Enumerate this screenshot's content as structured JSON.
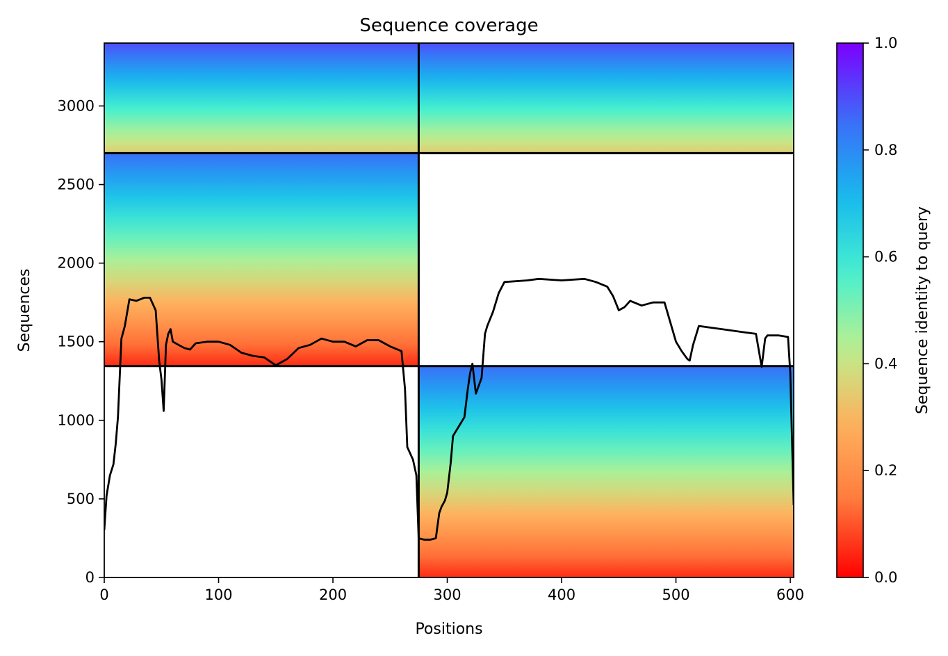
{
  "chart_data": {
    "type": "heatmap",
    "title": "Sequence coverage",
    "xlabel": "Positions",
    "ylabel": "Sequences",
    "xlim": [
      0,
      603
    ],
    "ylim": [
      0,
      3400
    ],
    "x_ticks": [
      0,
      100,
      200,
      300,
      400,
      500,
      600
    ],
    "y_ticks": [
      0,
      500,
      1000,
      1500,
      2000,
      2500,
      3000
    ],
    "grid": false,
    "colormap": "rainbow",
    "colorbar": {
      "label": "Sequence identity to query",
      "range": [
        0.0,
        1.0
      ],
      "ticks": [
        "0.0",
        "0.2",
        "0.4",
        "0.6",
        "0.8",
        "1.0"
      ],
      "stops": [
        "#ff0000",
        "#ff7a3c",
        "#ffb05c",
        "#bcf08e",
        "#46f0d0",
        "#16b8ee",
        "#3c6cf8",
        "#7b00ff"
      ]
    },
    "block_dividers": {
      "x": [
        275
      ],
      "y": [
        1345,
        2700
      ]
    },
    "blocks": [
      {
        "name": "block-1",
        "x_range": [
          0,
          275
        ],
        "y_range": [
          2700,
          3400
        ],
        "identity_top": 0.9,
        "identity_bottom": 0.35
      },
      {
        "name": "block-2",
        "x_range": [
          0,
          275
        ],
        "y_range": [
          1345,
          2700
        ],
        "identity_top": 0.85,
        "identity_bottom": 0.05
      },
      {
        "name": "block-3",
        "x_range": [
          275,
          603
        ],
        "y_range": [
          2700,
          3400
        ],
        "identity_top": 0.9,
        "identity_bottom": 0.35
      },
      {
        "name": "block-4",
        "x_range": [
          275,
          603
        ],
        "y_range": [
          0,
          1345
        ],
        "identity_top": 0.85,
        "identity_bottom": 0.05
      }
    ],
    "coverage": {
      "x": [
        0,
        2,
        5,
        8,
        10,
        12,
        15,
        18,
        22,
        28,
        35,
        40,
        45,
        48,
        50,
        52,
        54,
        56,
        58,
        60,
        65,
        70,
        75,
        80,
        90,
        100,
        110,
        120,
        130,
        140,
        150,
        160,
        170,
        180,
        190,
        200,
        210,
        220,
        230,
        240,
        250,
        260,
        263,
        265,
        270,
        273,
        275,
        280,
        285,
        290,
        293,
        295,
        298,
        300,
        303,
        305,
        310,
        315,
        318,
        320,
        322,
        325,
        330,
        333,
        335,
        340,
        345,
        350,
        370,
        380,
        400,
        420,
        430,
        440,
        445,
        450,
        455,
        460,
        470,
        480,
        490,
        500,
        505,
        510,
        512,
        515,
        520,
        530,
        540,
        560,
        570,
        575,
        578,
        580,
        590,
        598,
        600,
        603
      ],
      "y": [
        300,
        520,
        650,
        720,
        850,
        1020,
        1520,
        1600,
        1770,
        1760,
        1780,
        1780,
        1700,
        1380,
        1260,
        1060,
        1480,
        1550,
        1580,
        1500,
        1480,
        1460,
        1450,
        1490,
        1500,
        1500,
        1480,
        1430,
        1410,
        1400,
        1350,
        1390,
        1460,
        1480,
        1520,
        1500,
        1500,
        1470,
        1510,
        1510,
        1470,
        1440,
        1200,
        830,
        750,
        650,
        250,
        240,
        240,
        250,
        410,
        450,
        490,
        540,
        730,
        900,
        960,
        1020,
        1200,
        1300,
        1360,
        1170,
        1270,
        1550,
        1600,
        1690,
        1810,
        1880,
        1890,
        1900,
        1890,
        1900,
        1880,
        1850,
        1790,
        1700,
        1720,
        1760,
        1730,
        1750,
        1750,
        1500,
        1440,
        1390,
        1380,
        1480,
        1600,
        1590,
        1580,
        1560,
        1550,
        1340,
        1520,
        1540,
        1540,
        1530,
        1300,
        460
      ]
    }
  }
}
